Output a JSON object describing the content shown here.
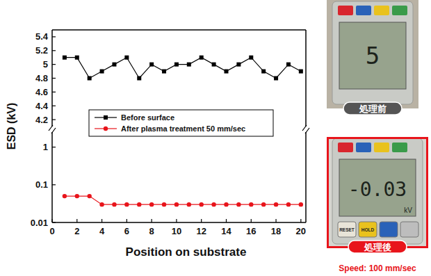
{
  "chart_data": [
    {
      "type": "line",
      "y_label": "ESD (kV)",
      "x": [
        1,
        2,
        3,
        4,
        5,
        6,
        7,
        8,
        9,
        10,
        11,
        12,
        13,
        14,
        15,
        16,
        17,
        18,
        19,
        20
      ],
      "xlim": [
        0,
        20.4
      ],
      "ylim": [
        4.1,
        5.5
      ],
      "yticks": [
        4.2,
        4.4,
        4.6,
        4.8,
        5,
        5.2,
        5.4
      ],
      "tick_labels": "y",
      "legend": "bottom-left",
      "series": [
        {
          "name": "Before surface",
          "color": "#000000",
          "marker": "square",
          "line_style": "solid",
          "values": [
            5.1,
            5.1,
            4.8,
            4.9,
            5.0,
            5.1,
            4.8,
            5.0,
            4.9,
            5.0,
            5.0,
            5.1,
            5.0,
            4.9,
            5.0,
            5.1,
            4.9,
            4.8,
            5.0,
            4.9
          ]
        }
      ]
    },
    {
      "type": "line",
      "x_label": "Position on substrate",
      "x": [
        1,
        2,
        3,
        4,
        5,
        6,
        7,
        8,
        9,
        10,
        11,
        12,
        13,
        14,
        15,
        16,
        17,
        18,
        19,
        20
      ],
      "xlim": [
        0,
        20.4
      ],
      "xticks": [
        0,
        2,
        4,
        6,
        8,
        10,
        12,
        14,
        16,
        18,
        20
      ],
      "ylim": [
        0.01,
        2.5
      ],
      "yticks": [
        0.01,
        0.1,
        1
      ],
      "log": "y",
      "series": [
        {
          "name": "After plasma treatment 50 mm/sec",
          "color": "#e8141b",
          "marker": "circle",
          "line_style": "solid",
          "values": [
            0.05,
            0.05,
            0.05,
            0.03,
            0.03,
            0.03,
            0.03,
            0.03,
            0.03,
            0.03,
            0.03,
            0.03,
            0.03,
            0.03,
            0.03,
            0.03,
            0.03,
            0.03,
            0.03,
            0.03
          ]
        }
      ]
    }
  ],
  "photos": [
    {
      "display": "5",
      "label": "処理前"
    },
    {
      "display": "-0.03",
      "unit": "kV",
      "buttons": [
        "RESET",
        "HOLD"
      ],
      "label": "処理後",
      "caption": "Speed: 100 mm/sec"
    }
  ]
}
